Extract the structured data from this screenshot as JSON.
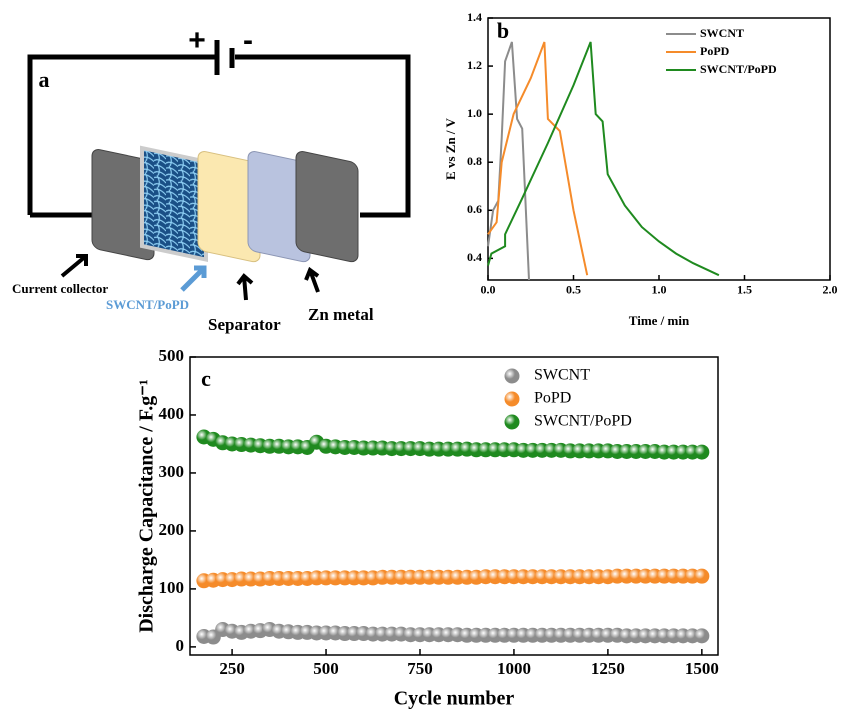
{
  "diagram": {
    "label": "a",
    "plus": "+",
    "minus": "-",
    "current_collector": "Current collector",
    "active": "SWCNT/PoPD",
    "separator": "Separator",
    "zn": "Zn metal"
  },
  "chart_data": [
    {
      "type": "line",
      "label": "b",
      "xlabel": "Time / min",
      "ylabel": "E vs Zn / V",
      "xlim": [
        0,
        2
      ],
      "ylim": [
        0.31,
        1.4
      ],
      "xticks": [
        {
          "value": 0,
          "label": "0.0"
        },
        {
          "value": 0.5,
          "label": "0.5"
        },
        {
          "value": 1,
          "label": "1.0"
        },
        {
          "value": 1.5,
          "label": "1.5"
        },
        {
          "value": 2,
          "label": "2.0"
        }
      ],
      "yticks": [
        {
          "value": 0.4,
          "label": "0.4"
        },
        {
          "value": 0.6,
          "label": "0.6"
        },
        {
          "value": 0.8,
          "label": "0.8"
        },
        {
          "value": 1,
          "label": "1.0"
        },
        {
          "value": 1.2,
          "label": "1.2"
        },
        {
          "value": 1.4,
          "label": "1.4"
        }
      ],
      "legend": "upper right",
      "series": [
        {
          "name": "SWCNT",
          "color": "#8c8c8c",
          "x": [
            0,
            0.03,
            0.06,
            0.08,
            0.1,
            0.14,
            0.17,
            0.2,
            0.24
          ],
          "values": [
            0.45,
            0.6,
            0.64,
            0.9,
            1.22,
            1.3,
            0.98,
            0.94,
            0.31
          ]
        },
        {
          "name": "PoPD",
          "color": "#f58b2a",
          "x": [
            0,
            0.05,
            0.08,
            0.15,
            0.25,
            0.33,
            0.35,
            0.42,
            0.5,
            0.58
          ],
          "values": [
            0.5,
            0.55,
            0.8,
            1,
            1.15,
            1.3,
            0.98,
            0.93,
            0.6,
            0.33
          ]
        },
        {
          "name": "SWCNT/PoPD",
          "color": "#1f8a1f",
          "x": [
            0,
            0.02,
            0.1,
            0.1,
            0.2,
            0.35,
            0.5,
            0.6,
            0.63,
            0.67,
            0.7,
            0.8,
            0.9,
            1,
            1.1,
            1.2,
            1.35
          ],
          "values": [
            0.37,
            0.42,
            0.45,
            0.5,
            0.65,
            0.88,
            1.12,
            1.3,
            1,
            0.97,
            0.75,
            0.62,
            0.53,
            0.47,
            0.42,
            0.38,
            0.33
          ]
        }
      ]
    },
    {
      "type": "scatter",
      "label": "c",
      "xlabel": "Cycle number",
      "ylabel": "Discharge Capacitance / F.g⁻¹",
      "xlim": [
        138,
        1543
      ],
      "ylim": [
        -14,
        500
      ],
      "xticks": [
        250,
        500,
        750,
        1000,
        1250,
        1500
      ],
      "yticks": [
        0,
        100,
        200,
        300,
        400,
        500
      ],
      "legend": "upper right",
      "x": [
        175,
        200,
        225,
        250,
        275,
        300,
        325,
        350,
        375,
        400,
        425,
        450,
        475,
        500,
        525,
        550,
        575,
        600,
        625,
        650,
        675,
        700,
        725,
        750,
        775,
        800,
        825,
        850,
        875,
        900,
        925,
        950,
        975,
        1000,
        1025,
        1050,
        1075,
        1100,
        1125,
        1150,
        1175,
        1200,
        1225,
        1250,
        1275,
        1300,
        1325,
        1350,
        1375,
        1400,
        1425,
        1450,
        1475,
        1500
      ],
      "series": [
        {
          "name": "SWCNT",
          "color": "#8c8c8c",
          "values": [
            18,
            17,
            30,
            27,
            25,
            27,
            28,
            30,
            27,
            26,
            25,
            25,
            24,
            24,
            24,
            23,
            23,
            23,
            22,
            22,
            22,
            22,
            21,
            21,
            21,
            21,
            21,
            21,
            20,
            20,
            20,
            20,
            20,
            20,
            20,
            20,
            20,
            20,
            20,
            20,
            20,
            20,
            20,
            20,
            20,
            19,
            19,
            19,
            19,
            19,
            19,
            19,
            19,
            19
          ]
        },
        {
          "name": "PoPD",
          "color": "#f58b2a",
          "values": [
            114,
            115,
            116,
            116,
            117,
            117,
            117,
            118,
            118,
            118,
            118,
            118,
            119,
            119,
            119,
            119,
            119,
            119,
            119,
            120,
            120,
            120,
            120,
            120,
            120,
            120,
            120,
            120,
            120,
            120,
            121,
            121,
            121,
            121,
            121,
            121,
            121,
            121,
            121,
            121,
            121,
            121,
            121,
            121,
            122,
            122,
            122,
            122,
            122,
            122,
            122,
            122,
            122,
            122
          ]
        },
        {
          "name": "SWCNT/PoPD",
          "color": "#1f8a1f",
          "values": [
            362,
            358,
            352,
            350,
            349,
            348,
            347,
            346,
            346,
            345,
            345,
            344,
            353,
            346,
            345,
            344,
            344,
            343,
            343,
            343,
            342,
            342,
            342,
            342,
            341,
            341,
            341,
            341,
            341,
            340,
            340,
            340,
            340,
            340,
            339,
            339,
            339,
            339,
            339,
            338,
            338,
            338,
            338,
            338,
            337,
            337,
            337,
            337,
            337,
            336,
            336,
            336,
            336,
            336
          ]
        }
      ]
    }
  ]
}
